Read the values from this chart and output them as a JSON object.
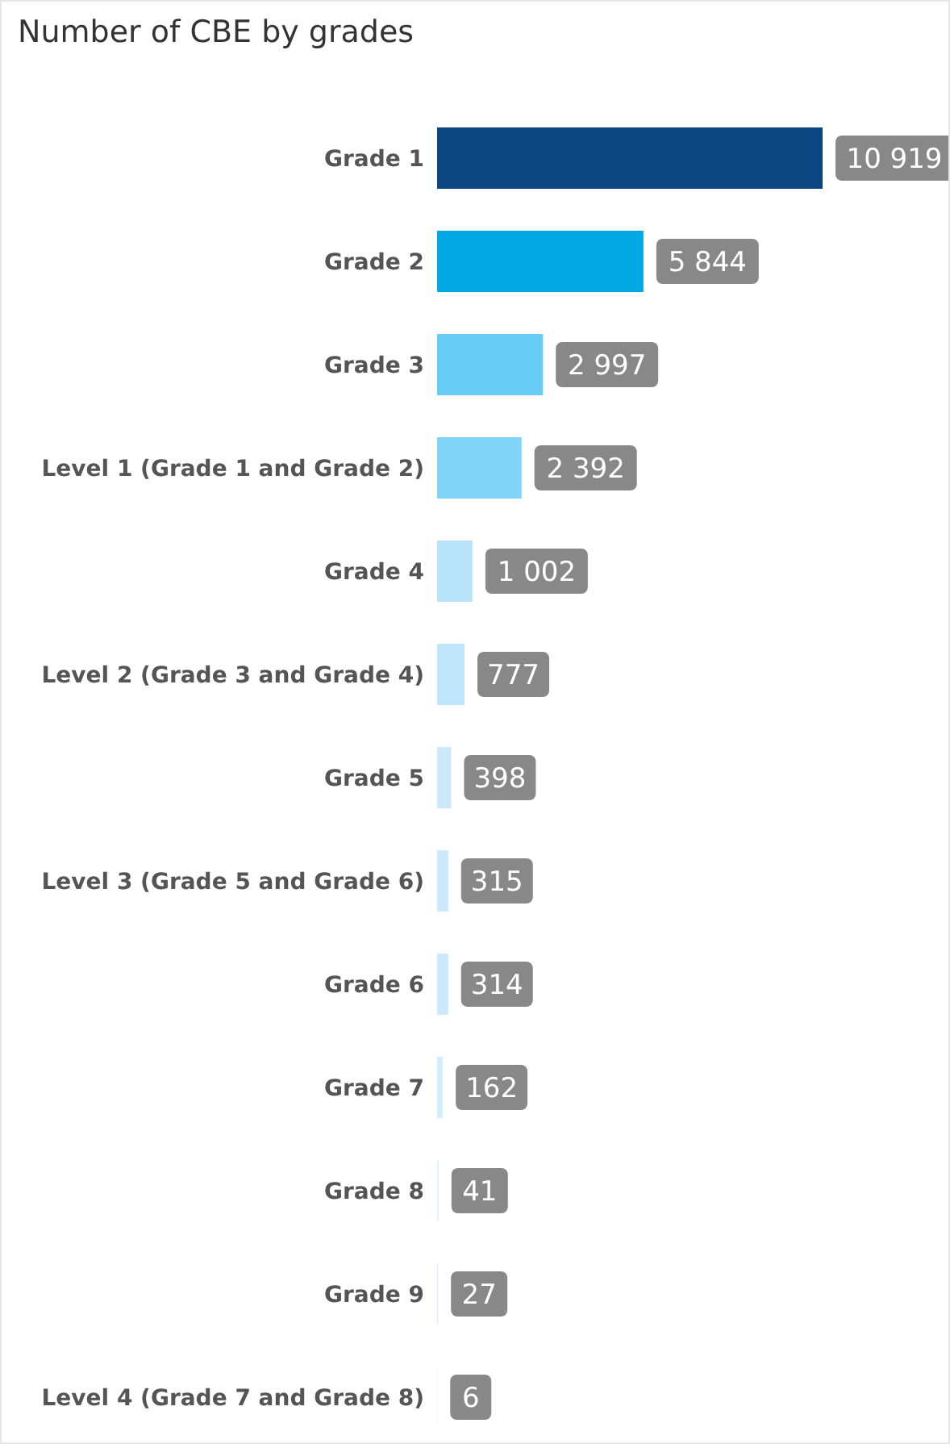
{
  "chart_data": {
    "type": "bar",
    "orientation": "horizontal",
    "title": "Number of CBE by grades",
    "categories": [
      "Grade 1",
      "Grade 2",
      "Grade 3",
      "Level 1 (Grade 1 and Grade 2)",
      "Grade 4",
      "Level 2 (Grade 3 and Grade 4)",
      "Grade 5",
      "Level 3 (Grade 5 and Grade 6)",
      "Grade 6",
      "Grade 7",
      "Grade 8",
      "Grade 9",
      "Level 4 (Grade 7 and Grade 8)"
    ],
    "values": [
      10919,
      5844,
      2997,
      2392,
      1002,
      777,
      398,
      315,
      314,
      162,
      41,
      27,
      6
    ],
    "value_labels": [
      "10 919",
      "5 844",
      "2 997",
      "2 392",
      "1 002",
      "777",
      "398",
      "315",
      "314",
      "162",
      "41",
      "27",
      "6"
    ],
    "colors": [
      "#0b4680",
      "#00a8e6",
      "#66cbf5",
      "#80d4f7",
      "#b8e4fa",
      "#c0e6fb",
      "#cce9fc",
      "#cce9fc",
      "#cce9fc",
      "#d4ecfc",
      "#dcefff",
      "#dcefff",
      "#dcefff"
    ],
    "grid": false,
    "legend": false
  }
}
